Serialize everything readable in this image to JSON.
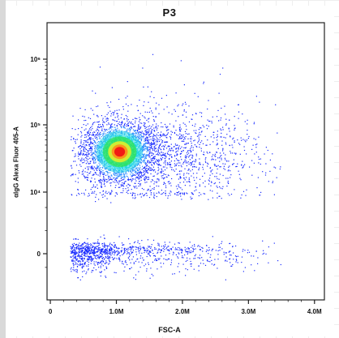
{
  "chart_data": {
    "type": "scatter",
    "title": "P3",
    "xlabel": "FSC-A",
    "ylabel": "αlgG Alexa Fluor 405-A",
    "x_ticks": [
      "0",
      "1.0M",
      "2.0M",
      "3.0M",
      "4.0M"
    ],
    "y_ticks": [
      "0",
      "10⁴",
      "10⁵",
      "10⁶"
    ],
    "x_range": [
      -0.05,
      4.15
    ],
    "x_unit": "M",
    "y_scale": "biexponential",
    "grid": false,
    "legend": "none",
    "density_colormap": [
      "#1a2cff",
      "#2f8cff",
      "#22d6e6",
      "#2ee35a",
      "#e8ef2a",
      "#ff8a1a",
      "#f01414"
    ],
    "populations": [
      {
        "name": "",
        "x_center": 1.05,
        "y_center": 4.6,
        "x_spread": 0.28,
        "y_spread": 0.22,
        "weight": 0.45
      },
      {
        "name": "",
        "x_center": 1.7,
        "y_center": 4.55,
        "x_spread": 0.75,
        "y_spread": 0.4,
        "weight": 0.3
      },
      {
        "name": "",
        "x_center": 0.5,
        "y_center": 0.1,
        "x_spread": 0.25,
        "y_spread": 0.35,
        "weight": 0.12
      },
      {
        "name": "",
        "x_center": 1.4,
        "y_center": 0.1,
        "x_spread": 0.9,
        "y_spread": 0.35,
        "weight": 0.13
      }
    ],
    "hotspot": {
      "x": 1.05,
      "y": 4.6
    }
  }
}
